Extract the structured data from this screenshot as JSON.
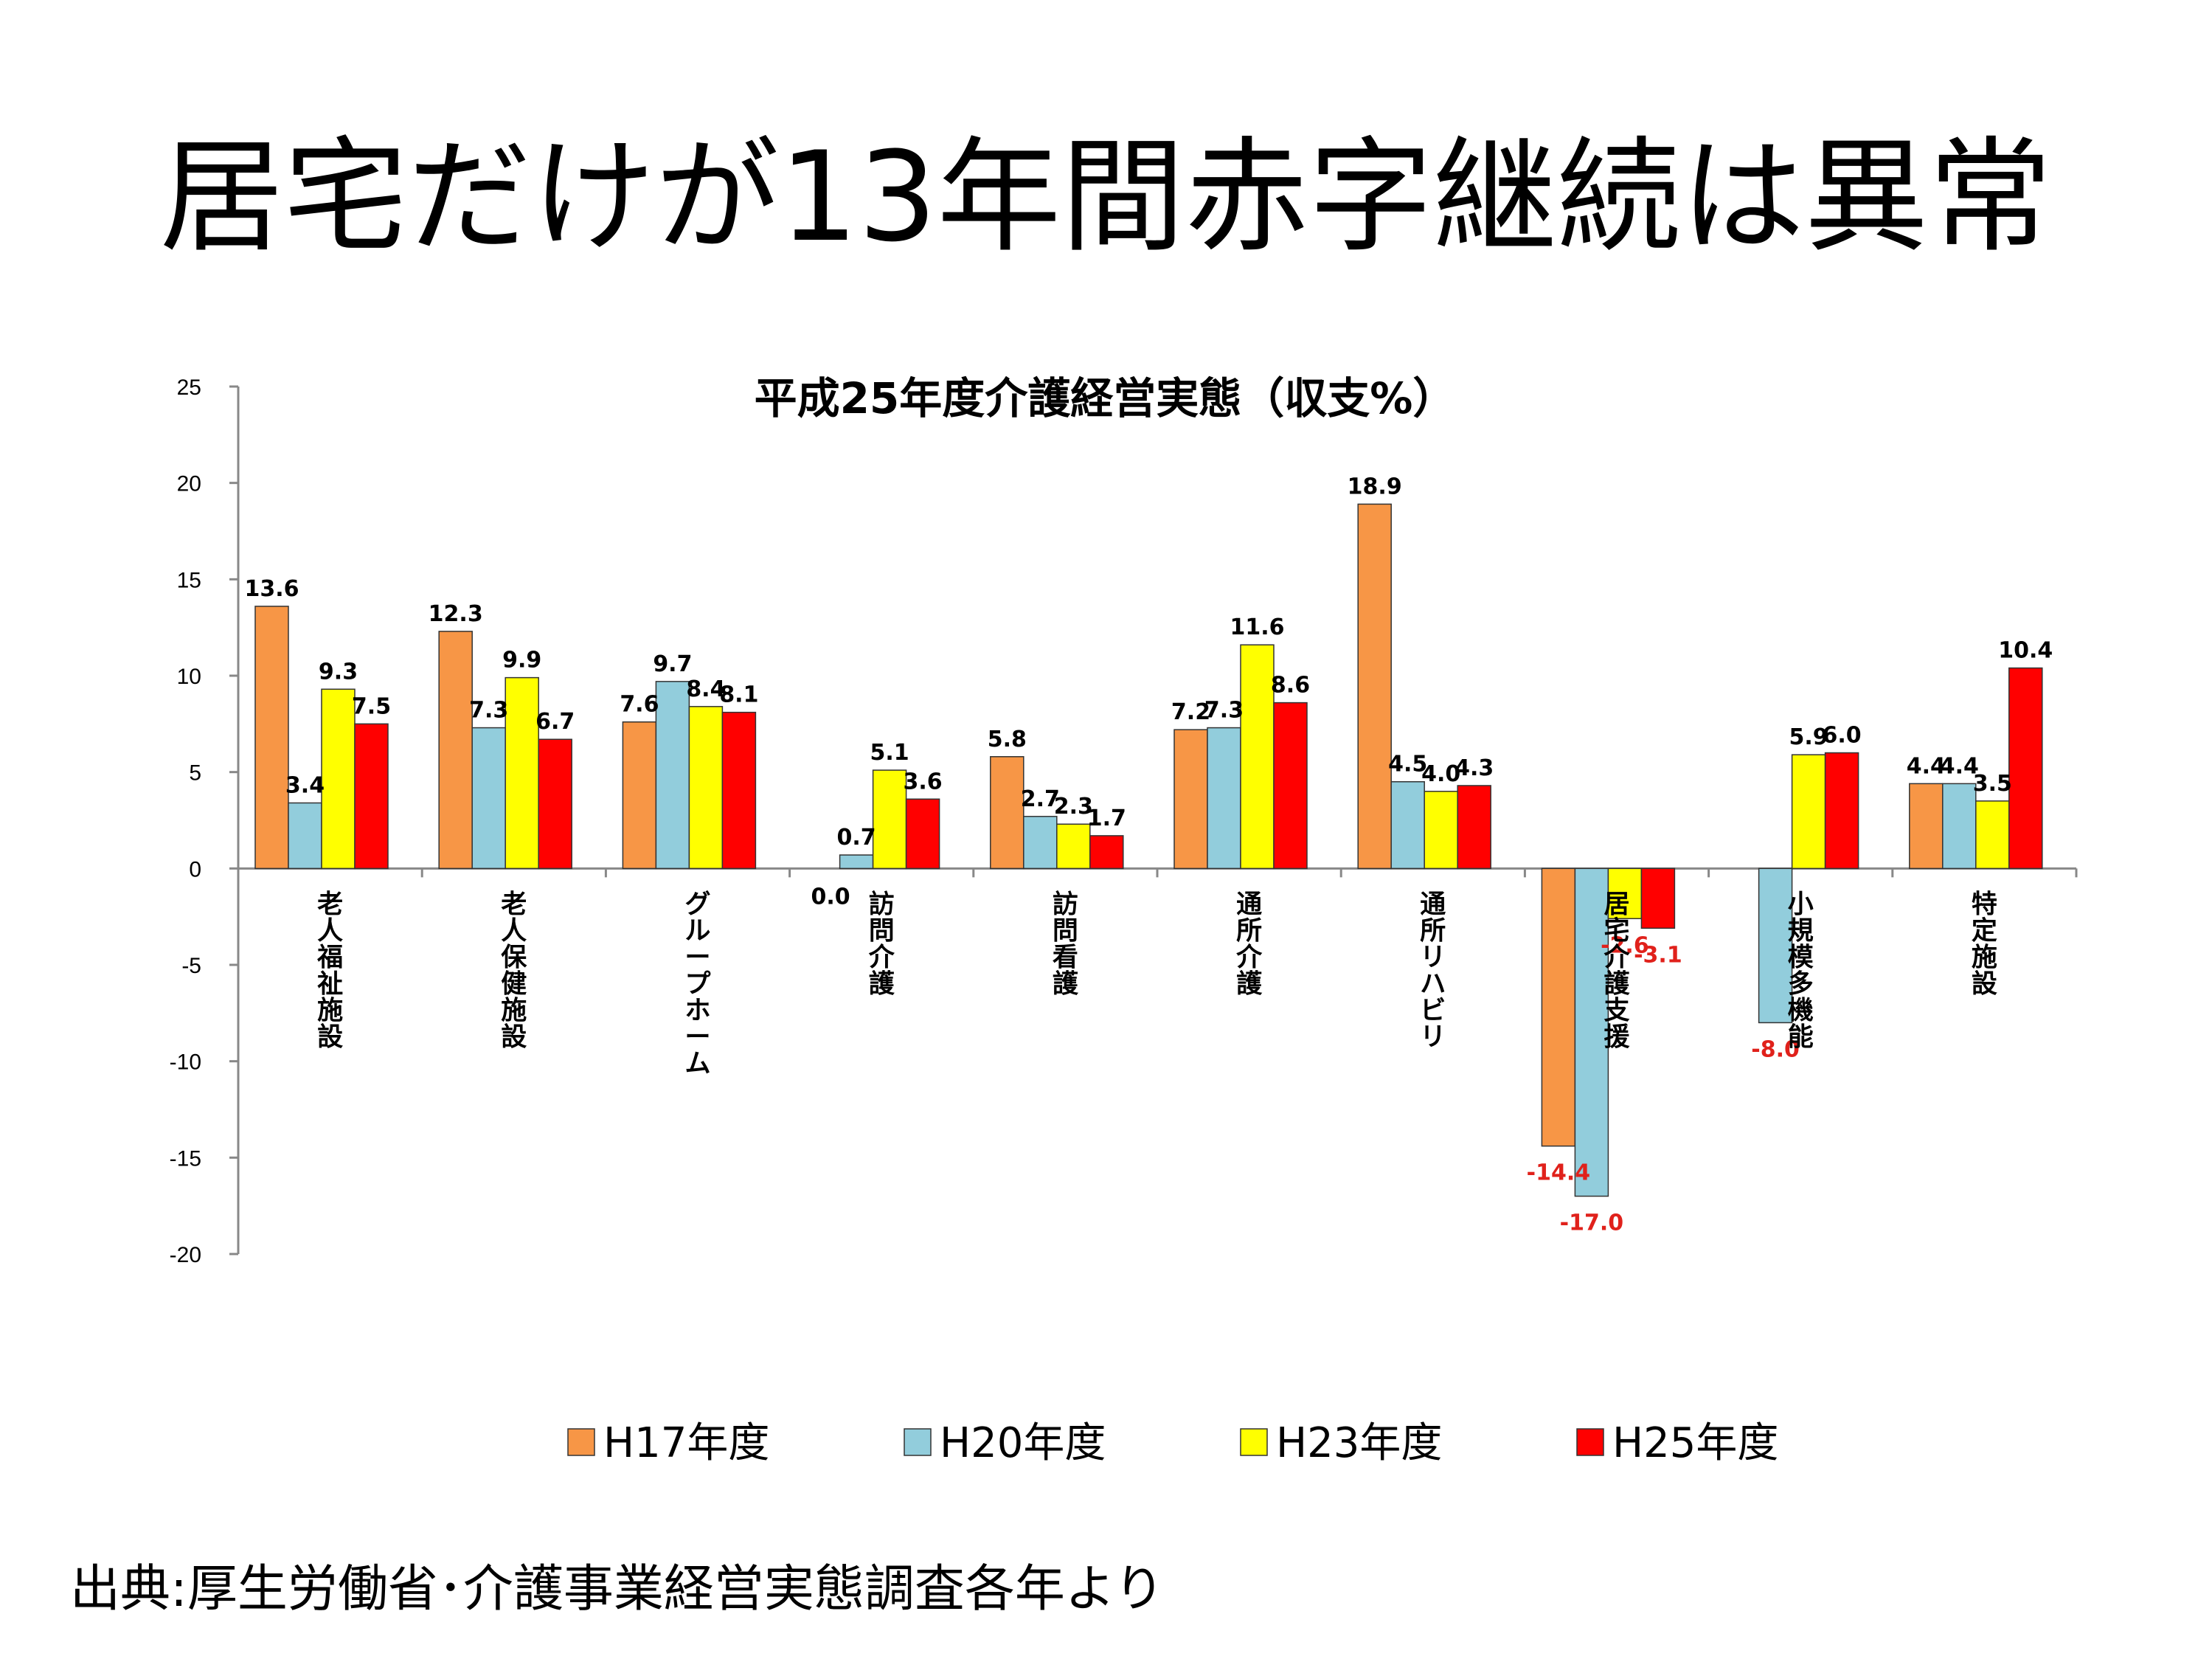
{
  "slide": {
    "title": "居宅だけが13年間赤字継続は異常",
    "footer": "出典:厚生労働省･介護事業経営実態調査各年より"
  },
  "chart_data": {
    "type": "bar",
    "title": "平成25年度介護経営実態（収支%）",
    "categories": [
      "老人福祉施設",
      "老人保健施設",
      "グループホーム",
      "訪問介護",
      "訪問看護",
      "通所介護",
      "通所リハビリ",
      "居宅介護支援",
      "小規模多機能",
      "特定施設"
    ],
    "series": [
      {
        "name": "H17年度",
        "color": "#F79646",
        "values": [
          13.6,
          12.3,
          7.6,
          0.0,
          5.8,
          7.2,
          18.9,
          -14.4,
          null,
          4.4
        ]
      },
      {
        "name": "H20年度",
        "color": "#92CDDC",
        "values": [
          3.4,
          7.3,
          9.7,
          0.7,
          2.7,
          7.3,
          4.5,
          -17.0,
          -8.0,
          4.4
        ]
      },
      {
        "name": "H23年度",
        "color": "#FFFF00",
        "values": [
          9.3,
          9.9,
          8.4,
          5.1,
          2.3,
          11.6,
          4.0,
          -2.6,
          5.9,
          3.5
        ]
      },
      {
        "name": "H25年度",
        "color": "#FF0000",
        "values": [
          7.5,
          6.7,
          8.1,
          3.6,
          1.7,
          8.6,
          4.3,
          -3.1,
          6.0,
          10.4
        ]
      }
    ],
    "ylim": [
      -20,
      25
    ],
    "yticks": [
      25,
      20,
      15,
      10,
      5,
      0,
      -5,
      -10,
      -15,
      -20
    ],
    "legend": "bottom",
    "negative_label_color": "#E0211B",
    "grid": false
  }
}
